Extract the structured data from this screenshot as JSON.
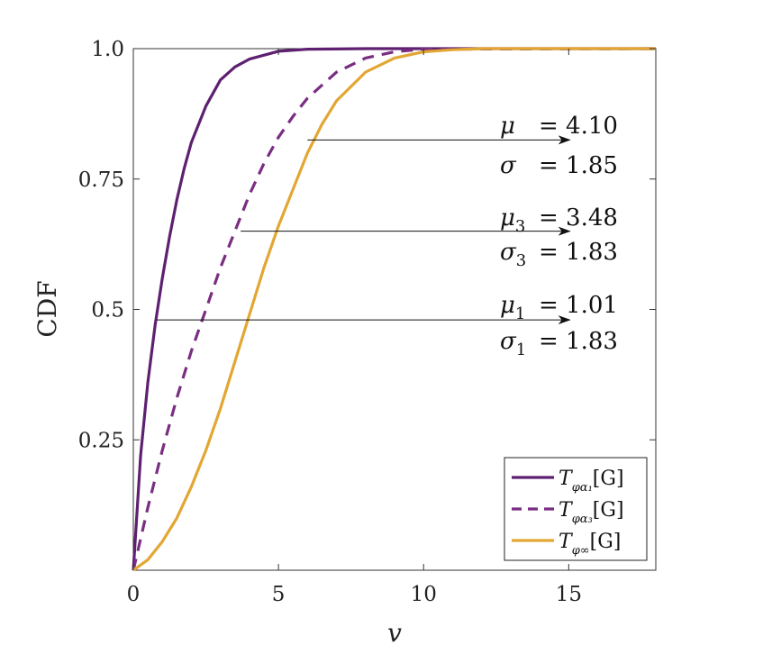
{
  "chart_data": {
    "type": "line",
    "xlabel": "v",
    "ylabel": "CDF",
    "xlim": [
      0,
      18
    ],
    "ylim": [
      0,
      1
    ],
    "x_ticks": [
      {
        "value": 0,
        "label": "0"
      },
      {
        "value": 5,
        "label": "5"
      },
      {
        "value": 10,
        "label": "10"
      },
      {
        "value": 15,
        "label": "15"
      }
    ],
    "y_ticks": [
      {
        "value": 0.25,
        "label": "0.25"
      },
      {
        "value": 0.5,
        "label": "0.5"
      },
      {
        "value": 0.75,
        "label": "0.75"
      },
      {
        "value": 1.0,
        "label": "1.0"
      }
    ],
    "grid": false,
    "legend_position": "bottom-right",
    "series": [
      {
        "name": "T_{φ_{α1}}[G]",
        "legend_main": "T",
        "legend_sub": "φα₁",
        "legend_tail": "[G]",
        "color": "#5e2070",
        "dash": "solid",
        "x": [
          0,
          0.25,
          0.5,
          0.75,
          1.0,
          1.25,
          1.5,
          1.75,
          2.0,
          2.5,
          3.0,
          3.5,
          4.0,
          5.0,
          6.0,
          8.0,
          10.0,
          18.0
        ],
        "y": [
          0,
          0.22,
          0.36,
          0.47,
          0.56,
          0.64,
          0.71,
          0.77,
          0.82,
          0.89,
          0.94,
          0.965,
          0.98,
          0.995,
          0.999,
          1.0,
          1.0,
          1.0
        ]
      },
      {
        "name": "T_{φ_{α3}}[G]",
        "legend_main": "T",
        "legend_sub": "φα₃",
        "legend_tail": "[G]",
        "color": "#7a2e82",
        "dash": "dashed",
        "x": [
          0,
          0.5,
          1.0,
          1.5,
          2.0,
          2.5,
          3.0,
          3.5,
          4.0,
          4.5,
          5.0,
          5.5,
          6.0,
          7.0,
          8.0,
          9.0,
          10.0,
          18.0
        ],
        "y": [
          0,
          0.12,
          0.23,
          0.33,
          0.42,
          0.5,
          0.58,
          0.65,
          0.72,
          0.78,
          0.83,
          0.87,
          0.905,
          0.955,
          0.982,
          0.994,
          0.999,
          1.0
        ]
      },
      {
        "name": "T_{φ∞}[G]",
        "legend_main": "T",
        "legend_sub": "φ∞",
        "legend_tail": "[G]",
        "color": "#e2a733",
        "dash": "solid",
        "x": [
          0,
          0.5,
          1.0,
          1.5,
          2.0,
          2.5,
          3.0,
          3.5,
          4.0,
          4.5,
          5.0,
          5.5,
          6.0,
          6.5,
          7.0,
          8.0,
          9.0,
          10.0,
          11.0,
          12.0,
          18.0
        ],
        "y": [
          0,
          0.02,
          0.055,
          0.1,
          0.16,
          0.23,
          0.31,
          0.4,
          0.49,
          0.58,
          0.66,
          0.73,
          0.8,
          0.855,
          0.9,
          0.955,
          0.982,
          0.994,
          0.998,
          1.0,
          1.0
        ]
      }
    ],
    "annotations": [
      {
        "arrow_from": {
          "x": 6.0,
          "y": 0.825
        },
        "arrow_to": {
          "x": 12.0,
          "y": 0.825
        },
        "lines": [
          {
            "sym": "μ",
            "sub": "",
            "value": "= 4.10"
          },
          {
            "sym": "σ",
            "sub": "",
            "value": "= 1.85"
          }
        ]
      },
      {
        "arrow_from": {
          "x": 3.7,
          "y": 0.65
        },
        "arrow_to": {
          "x": 12.0,
          "y": 0.65
        },
        "lines": [
          {
            "sym": "μ",
            "sub": "3",
            "value": "= 3.48"
          },
          {
            "sym": "σ",
            "sub": "3",
            "value": "= 1.83"
          }
        ]
      },
      {
        "arrow_from": {
          "x": 0.8,
          "y": 0.48
        },
        "arrow_to": {
          "x": 12.0,
          "y": 0.48
        },
        "lines": [
          {
            "sym": "μ",
            "sub": "1",
            "value": "= 1.01"
          },
          {
            "sym": "σ",
            "sub": "1",
            "value": "= 1.83"
          }
        ]
      }
    ]
  }
}
